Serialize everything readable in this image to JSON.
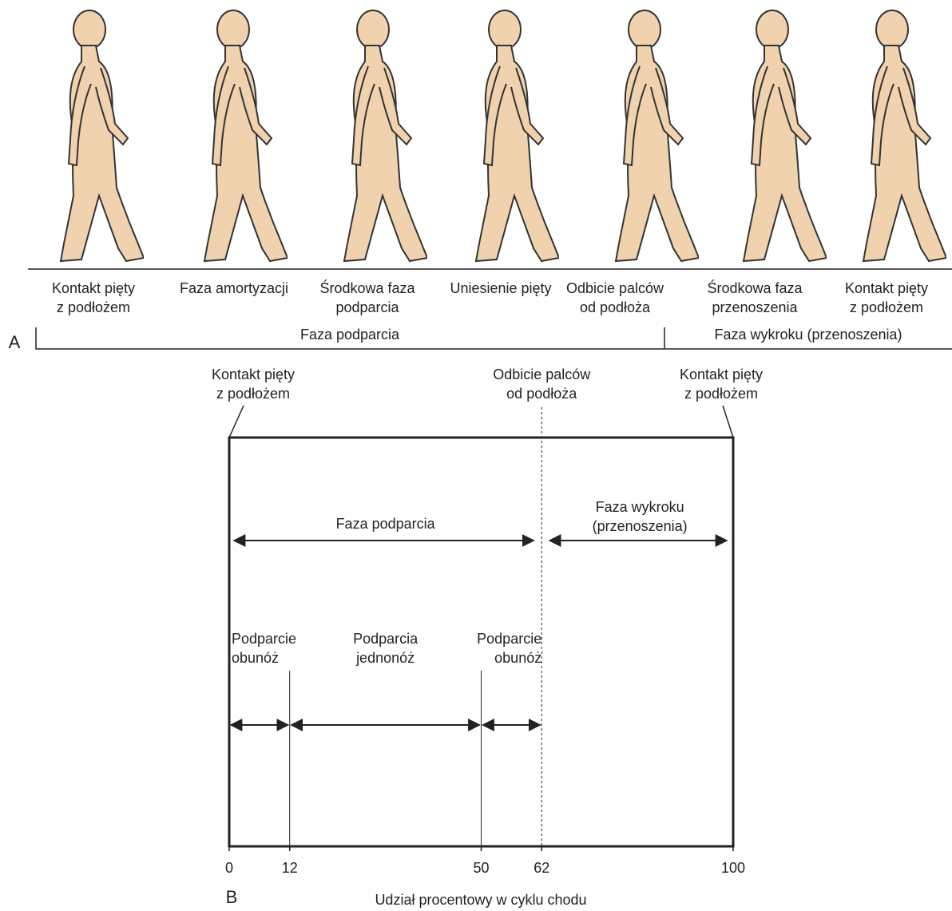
{
  "part_a": {
    "label": "A",
    "phases": [
      [
        "Kontakt pięty",
        "z podłożem"
      ],
      [
        "Faza amortyzacji"
      ],
      [
        "Środkowa faza",
        "podparcia"
      ],
      [
        "Uniesienie pięty"
      ],
      [
        "Odbicie palców",
        "od podłoża"
      ],
      [
        "Środkowa faza",
        "przenoszenia"
      ],
      [
        "Kontakt pięty",
        "z podłożem"
      ]
    ],
    "stance": "Faza podparcia",
    "swing": "Faza wykroku (przenoszenia)"
  },
  "part_b": {
    "label": "B",
    "events": [
      {
        "text": [
          "Kontakt pięty",
          "z podłożem"
        ],
        "at": 0
      },
      {
        "text": [
          "Odbicie palców",
          "od podłoża"
        ],
        "at": 62
      },
      {
        "text": [
          "Kontakt pięty",
          "z podłożem"
        ],
        "at": 100
      }
    ],
    "stance": [
      "Faza podparcia"
    ],
    "swing": [
      "Faza wykroku",
      "(przenoszenia)"
    ],
    "subphases": [
      {
        "text": [
          "Podparcie",
          "obunóż"
        ],
        "from": 0,
        "to": 12
      },
      {
        "text": [
          "Podparcia",
          "jednonóż"
        ],
        "from": 12,
        "to": 50
      },
      {
        "text": [
          "Podparcie",
          "obunóż"
        ],
        "from": 50,
        "to": 62
      }
    ],
    "ticks": [
      0,
      12,
      50,
      62,
      100
    ],
    "xlabel": "Udział procentowy w cyklu chodu"
  }
}
